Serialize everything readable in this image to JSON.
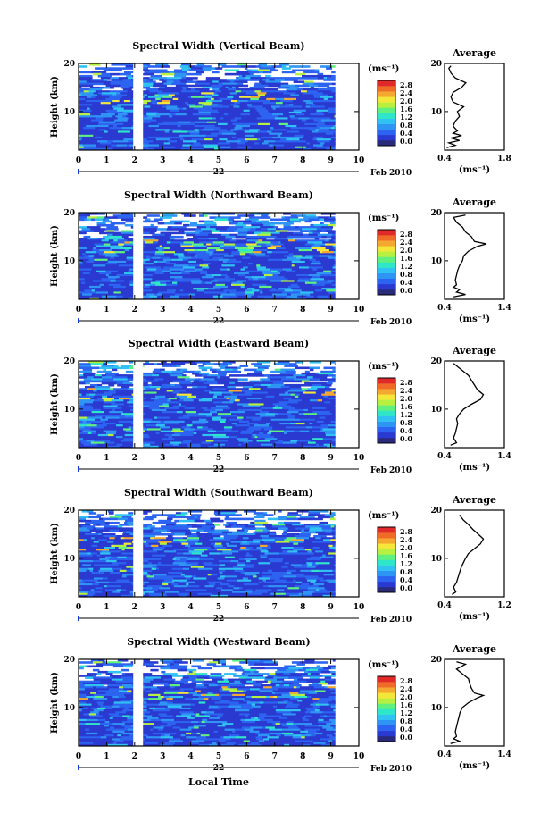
{
  "figure": {
    "xlabel": "Local Time",
    "date_month_year": "Feb 2010",
    "day": "22",
    "avg_title": "Average"
  },
  "colorbar": {
    "unit": "(ms⁻¹)",
    "ticks": [
      "0.0",
      "0.4",
      "0.8",
      "1.2",
      "1.6",
      "2.0",
      "2.4",
      "2.8"
    ],
    "colors": [
      "#2a2a7a",
      "#2a3ad0",
      "#2c63f0",
      "#2e95f5",
      "#30c2f2",
      "#2fe6c8",
      "#5ff07f",
      "#b8f042",
      "#f5e63a",
      "#f5a830",
      "#f06a28",
      "#e02a2a"
    ]
  },
  "chart_data": [
    {
      "type": "heatmap",
      "title": "Spectral Width (Vertical Beam)",
      "ylabel": "Height (km)",
      "x_ticks": [
        "0",
        "1",
        "2",
        "3",
        "4",
        "5",
        "6",
        "7",
        "8",
        "9",
        "10"
      ],
      "y_ticks": [
        "20",
        "10"
      ],
      "xlim": [
        0,
        10
      ],
      "ylim": [
        2,
        20
      ],
      "data_gap": [
        1.95,
        2.3
      ],
      "data_end": 9.15,
      "average_profile": {
        "title": "Average",
        "x_ticks": [
          "0.4",
          "1.8"
        ],
        "xlim": [
          0.4,
          1.8
        ],
        "y_ticks": [
          "20",
          "10"
        ],
        "height": [
          2.5,
          3,
          3.5,
          4,
          4.5,
          5,
          5.5,
          6,
          7,
          8,
          9,
          10,
          11,
          12,
          13,
          14,
          15,
          16,
          17,
          18,
          19,
          19.5
        ],
        "width": [
          0.45,
          0.65,
          0.5,
          0.75,
          0.55,
          0.8,
          0.6,
          0.7,
          0.6,
          0.65,
          0.75,
          0.7,
          0.85,
          0.6,
          0.55,
          0.6,
          0.8,
          0.9,
          0.65,
          0.55,
          0.5,
          0.55
        ]
      }
    },
    {
      "type": "heatmap",
      "title": "Spectral Width (Northward Beam)",
      "ylabel": "Height (km)",
      "x_ticks": [
        "0",
        "1",
        "2",
        "3",
        "4",
        "5",
        "6",
        "7",
        "8",
        "9",
        "10"
      ],
      "y_ticks": [
        "20",
        "10"
      ],
      "xlim": [
        0,
        10
      ],
      "ylim": [
        2,
        20
      ],
      "data_gap": [
        1.95,
        2.3
      ],
      "data_end": 9.15,
      "average_profile": {
        "title": "Average",
        "x_ticks": [
          "0.4",
          "1.4"
        ],
        "xlim": [
          0.4,
          1.4
        ],
        "y_ticks": [
          "20",
          "10"
        ],
        "height": [
          2.5,
          3,
          3.5,
          4,
          4.5,
          5,
          6,
          7,
          8,
          9,
          10,
          11,
          12,
          13,
          13.5,
          14,
          15,
          16,
          17,
          18,
          19,
          19.5
        ],
        "width": [
          0.55,
          0.75,
          0.6,
          0.65,
          0.55,
          0.6,
          0.58,
          0.6,
          0.62,
          0.65,
          0.7,
          0.72,
          0.8,
          0.95,
          1.1,
          0.9,
          0.85,
          0.75,
          0.7,
          0.6,
          0.55,
          0.75
        ]
      }
    },
    {
      "type": "heatmap",
      "title": "Spectral Width (Eastward Beam)",
      "ylabel": "Height (km)",
      "x_ticks": [
        "0",
        "1",
        "2",
        "3",
        "4",
        "5",
        "6",
        "7",
        "8",
        "9",
        "10"
      ],
      "y_ticks": [
        "20",
        "10"
      ],
      "xlim": [
        0,
        10
      ],
      "ylim": [
        2,
        20
      ],
      "data_gap": [
        1.95,
        2.3
      ],
      "data_end": 9.15,
      "average_profile": {
        "title": "Average",
        "x_ticks": [
          "0.4",
          "1.4"
        ],
        "xlim": [
          0.4,
          1.4
        ],
        "y_ticks": [
          "20",
          "10"
        ],
        "height": [
          2.5,
          3,
          4,
          5,
          6,
          7,
          8,
          9,
          10,
          11,
          12,
          13,
          14,
          15,
          16,
          17,
          18,
          19,
          19.5
        ],
        "width": [
          0.5,
          0.6,
          0.55,
          0.58,
          0.6,
          0.62,
          0.6,
          0.65,
          0.72,
          0.85,
          1.0,
          1.05,
          0.95,
          0.9,
          0.85,
          0.8,
          0.7,
          0.6,
          0.55
        ]
      }
    },
    {
      "type": "heatmap",
      "title": "Spectral Width (Southward Beam)",
      "ylabel": "Height (km)",
      "x_ticks": [
        "0",
        "1",
        "2",
        "3",
        "4",
        "5",
        "6",
        "7",
        "8",
        "9",
        "10"
      ],
      "y_ticks": [
        "20",
        "10"
      ],
      "xlim": [
        0,
        10
      ],
      "ylim": [
        2,
        20
      ],
      "data_gap": [
        1.95,
        2.3
      ],
      "data_end": 9.15,
      "average_profile": {
        "title": "Average",
        "x_ticks": [
          "0.4",
          "1.2"
        ],
        "xlim": [
          0.4,
          1.2
        ],
        "y_ticks": [
          "20",
          "10"
        ],
        "height": [
          2.5,
          3,
          4,
          5,
          6,
          7,
          8,
          9,
          10,
          11,
          12,
          13,
          14,
          15,
          16,
          17,
          18,
          19
        ],
        "width": [
          0.5,
          0.55,
          0.52,
          0.56,
          0.58,
          0.6,
          0.62,
          0.65,
          0.68,
          0.72,
          0.8,
          0.88,
          0.92,
          0.85,
          0.78,
          0.72,
          0.65,
          0.6
        ]
      }
    },
    {
      "type": "heatmap",
      "title": "Spectral Width (Westward Beam)",
      "ylabel": "Height (km)",
      "x_ticks": [
        "0",
        "1",
        "2",
        "3",
        "4",
        "5",
        "6",
        "7",
        "8",
        "9",
        "10"
      ],
      "y_ticks": [
        "20",
        "10"
      ],
      "xlim": [
        0,
        10
      ],
      "ylim": [
        2,
        20
      ],
      "data_gap": [
        1.95,
        2.3
      ],
      "data_end": 9.15,
      "average_profile": {
        "title": "Average",
        "x_ticks": [
          "0.4",
          "1.4"
        ],
        "xlim": [
          0.4,
          1.4
        ],
        "y_ticks": [
          "20",
          "10"
        ],
        "height": [
          2.5,
          3,
          3.5,
          4,
          5,
          6,
          7,
          8,
          9,
          10,
          11,
          12,
          12.5,
          13,
          14,
          15,
          16,
          17,
          18,
          19,
          19.5
        ],
        "width": [
          0.5,
          0.65,
          0.55,
          0.6,
          0.58,
          0.6,
          0.62,
          0.64,
          0.66,
          0.7,
          0.8,
          0.95,
          1.05,
          0.9,
          0.85,
          0.82,
          0.8,
          0.7,
          0.6,
          0.75,
          0.6
        ]
      }
    }
  ]
}
